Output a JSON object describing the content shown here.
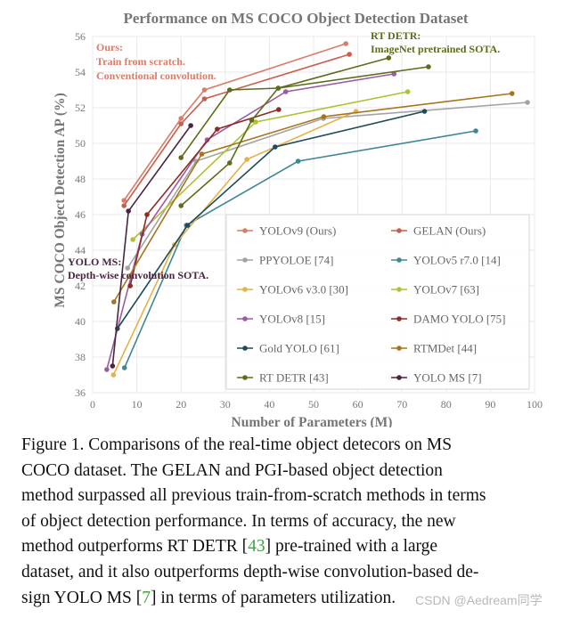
{
  "chart_data": {
    "type": "line",
    "title": "Performance on MS COCO Object Detection Dataset",
    "xlabel": "Number of Parameters (M)",
    "ylabel": "MS COCO Object Detection AP (%)",
    "xlim": [
      0,
      100
    ],
    "ylim": [
      36,
      56
    ],
    "xticks": [
      0,
      10,
      20,
      30,
      40,
      50,
      60,
      70,
      80,
      90,
      100
    ],
    "yticks": [
      36,
      38,
      40,
      42,
      44,
      46,
      48,
      50,
      52,
      54,
      56
    ],
    "grid": true,
    "legend_position": "bottom-right",
    "series": [
      {
        "name": "YOLOv9 (Ours)",
        "color": "#d97c6a",
        "points": [
          [
            7.1,
            46.8
          ],
          [
            20.0,
            51.4
          ],
          [
            25.3,
            53.0
          ],
          [
            57.3,
            55.6
          ]
        ]
      },
      {
        "name": "GELAN (Ours)",
        "color": "#cc5c4c",
        "points": [
          [
            7.1,
            46.5
          ],
          [
            20.0,
            51.1
          ],
          [
            25.3,
            52.5
          ],
          [
            58.1,
            55.0
          ]
        ]
      },
      {
        "name": "PPYOLOE [74]",
        "color": "#a3a3a3",
        "points": [
          [
            7.9,
            43.0
          ],
          [
            23.4,
            49.0
          ],
          [
            52.2,
            51.4
          ],
          [
            98.4,
            52.3
          ]
        ]
      },
      {
        "name": "YOLOv5 r7.0 [14]",
        "color": "#3f8797",
        "points": [
          [
            7.2,
            37.4
          ],
          [
            21.2,
            45.4
          ],
          [
            46.5,
            49.0
          ],
          [
            86.7,
            50.7
          ]
        ]
      },
      {
        "name": "YOLOv6 v3.0 [30]",
        "color": "#e7b146",
        "points": [
          [
            4.7,
            37.0
          ],
          [
            18.5,
            44.3
          ],
          [
            34.9,
            49.1
          ],
          [
            59.6,
            51.8
          ]
        ]
      },
      {
        "name": "YOLOv7 [63]",
        "color": "#b0c131",
        "points": [
          [
            9.1,
            44.6
          ],
          [
            36.9,
            51.2
          ],
          [
            71.3,
            52.9
          ]
        ]
      },
      {
        "name": "YOLOv8 [15]",
        "color": "#9c5aa8",
        "points": [
          [
            3.2,
            37.3
          ],
          [
            11.2,
            44.9
          ],
          [
            25.9,
            50.2
          ],
          [
            43.7,
            52.9
          ],
          [
            68.2,
            53.9
          ]
        ]
      },
      {
        "name": "DAMO YOLO [75]",
        "color": "#8b2e20",
        "points": [
          [
            8.5,
            42.0
          ],
          [
            12.3,
            46.0
          ],
          [
            28.2,
            50.8
          ],
          [
            42.1,
            51.9
          ]
        ]
      },
      {
        "name": "Gold YOLO [61]",
        "color": "#1f4a5a",
        "points": [
          [
            5.6,
            39.6
          ],
          [
            21.5,
            45.4
          ],
          [
            41.3,
            49.8
          ],
          [
            75.1,
            51.8
          ]
        ]
      },
      {
        "name": "RTMDet [44]",
        "color": "#a7741c",
        "points": [
          [
            4.8,
            41.1
          ],
          [
            24.7,
            49.4
          ],
          [
            52.3,
            51.5
          ],
          [
            94.9,
            52.8
          ]
        ]
      },
      {
        "name": "RT DETR [43]",
        "color": "#5e6c1b",
        "points": [
          [
            20.0,
            46.5
          ],
          [
            31.0,
            48.9
          ],
          [
            36.0,
            51.3
          ],
          [
            42.0,
            53.1
          ],
          [
            67.0,
            54.8
          ]
        ]
      },
      {
        "name": "RT DETR (ImageNet pretrained)",
        "color": "#5e6c1b",
        "points": [
          [
            20.0,
            49.2
          ],
          [
            31.0,
            53.0
          ],
          [
            42.0,
            53.1
          ],
          [
            76.0,
            54.3
          ]
        ]
      },
      {
        "name": "YOLO MS [7]",
        "color": "#4a2540",
        "points": [
          [
            4.5,
            37.5
          ],
          [
            8.1,
            46.2
          ],
          [
            22.2,
            51.0
          ]
        ]
      }
    ],
    "legend_entries": [
      "YOLOv9 (Ours)",
      "GELAN (Ours)",
      "PPYOLOE [74]",
      "YOLOv5 r7.0 [14]",
      "YOLOv6 v3.0 [30]",
      "YOLOv7 [63]",
      "YOLOv8 [15]",
      "DAMO YOLO [75]",
      "Gold YOLO [61]",
      "RTMDet [44]",
      "RT DETR [43]",
      "YOLO MS [7]"
    ],
    "annotations": [
      {
        "lines": [
          "Ours:",
          "Train from scratch.",
          "Conventional convolution."
        ],
        "color": "#d97c6a"
      },
      {
        "lines": [
          "RT DETR:",
          "ImageNet pretrained SOTA."
        ],
        "color": "#5e6c1b"
      },
      {
        "lines": [
          "YOLO MS:",
          "Depth-wise convolution SOTA."
        ],
        "color": "#4a2540"
      }
    ]
  },
  "caption": {
    "line1": "Figure 1.  Comparisons of the real-time object detecors on MS",
    "line2": "COCO dataset.  The GELAN and PGI-based object detection",
    "line3": "method surpassed all previous train-from-scratch methods in terms",
    "line4": "of object detection performance.  In terms of accuracy, the new",
    "line5a": "method outperforms RT DETR [",
    "ref1": "43",
    "line5b": "] pre-trained with a large",
    "line6": "dataset, and it also outperforms depth-wise convolution-based de-",
    "line7a": "sign YOLO MS [",
    "ref2": "7",
    "line7b": "] in terms of parameters utilization."
  },
  "watermark": "CSDN @Aedream同学"
}
